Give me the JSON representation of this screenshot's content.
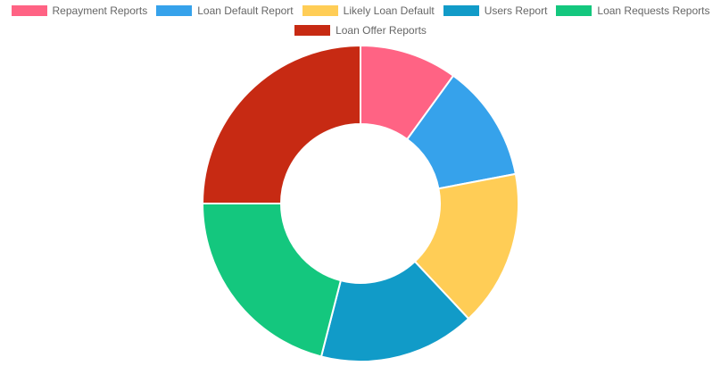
{
  "chart_data": {
    "type": "doughnut",
    "legend_position": "top",
    "labels": [
      "Repayment Reports",
      "Loan Default Report",
      "Likely Loan Default",
      "Users Report",
      "Loan Requests Reports",
      "Loan Offer Reports"
    ],
    "values": [
      10,
      12,
      16,
      16,
      21,
      25
    ],
    "colors": [
      "#ff6384",
      "#36a2eb",
      "#ffcd56",
      "#119bc8",
      "#14c77e",
      "#c72a13"
    ]
  }
}
